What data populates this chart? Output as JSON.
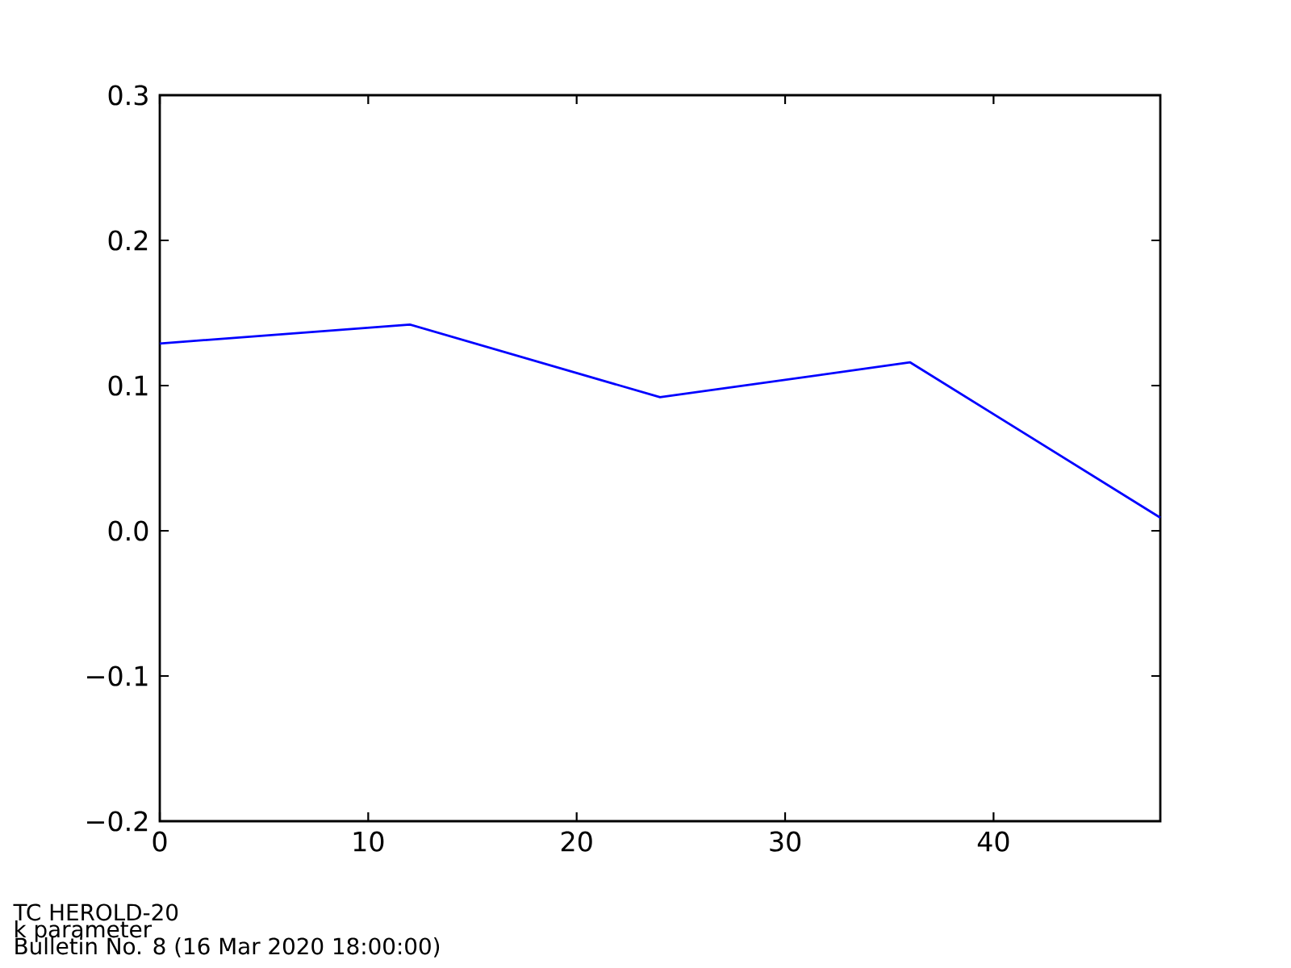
{
  "chart_data": {
    "type": "line",
    "x": [
      0,
      12,
      24,
      36,
      48
    ],
    "values": [
      0.129,
      0.142,
      0.092,
      0.116,
      0.009
    ],
    "color": "#0000ff",
    "line_style": "solid",
    "xlim": [
      0,
      48
    ],
    "xticks": [
      0,
      10,
      20,
      30,
      40
    ],
    "ylim": [
      -0.2,
      0.3
    ],
    "yticks": [
      {
        "value": -0.2,
        "label": "−0.2"
      },
      {
        "value": -0.1,
        "label": "−0.1"
      },
      {
        "value": 0,
        "label": "0.0"
      },
      0.1,
      0.2,
      0.3
    ],
    "annotations": [
      "TC HEROLD-20",
      "k parameter",
      "Bulletin No. 8 (16 Mar 2020  18:00:00)"
    ]
  }
}
